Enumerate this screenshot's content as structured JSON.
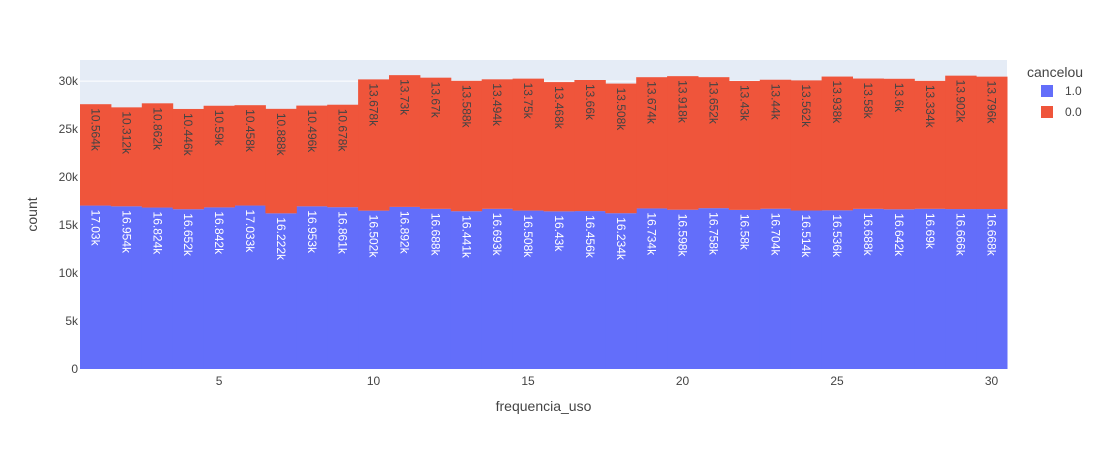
{
  "chart_data": {
    "type": "bar",
    "barmode": "stack",
    "x": [
      1,
      2,
      3,
      4,
      5,
      6,
      7,
      8,
      9,
      10,
      11,
      12,
      13,
      14,
      15,
      16,
      17,
      18,
      19,
      20,
      21,
      22,
      23,
      24,
      25,
      26,
      27,
      28,
      29,
      30
    ],
    "series": [
      {
        "name": "1.0",
        "color": "#636efa",
        "label_color": "#ffffff",
        "values": [
          17030,
          16954,
          16824,
          16652,
          16842,
          17033,
          16222,
          16953,
          16861,
          16502,
          16892,
          16688,
          16441,
          16693,
          16508,
          16430,
          16456,
          16234,
          16734,
          16598,
          16758,
          16580,
          16704,
          16514,
          16536,
          16688,
          16642,
          16690,
          16666,
          16668
        ],
        "labels": [
          "17.03k",
          "16.954k",
          "16.824k",
          "16.652k",
          "16.842k",
          "17.033k",
          "16.222k",
          "16.953k",
          "16.861k",
          "16.502k",
          "16.892k",
          "16.688k",
          "16.441k",
          "16.693k",
          "16.508k",
          "16.43k",
          "16.456k",
          "16.234k",
          "16.734k",
          "16.598k",
          "16.758k",
          "16.58k",
          "16.704k",
          "16.514k",
          "16.536k",
          "16.688k",
          "16.642k",
          "16.69k",
          "16.666k",
          "16.668k"
        ]
      },
      {
        "name": "0.0",
        "color": "#ef553b",
        "label_color": "#444444",
        "values": [
          10564,
          10312,
          10862,
          10446,
          10590,
          10458,
          10888,
          10496,
          10678,
          13678,
          13730,
          13670,
          13588,
          13494,
          13750,
          13468,
          13660,
          13508,
          13674,
          13918,
          13652,
          13430,
          13440,
          13562,
          13938,
          13580,
          13600,
          13334,
          13902,
          13796
        ],
        "labels": [
          "10.564k",
          "10.312k",
          "10.862k",
          "10.446k",
          "10.59k",
          "10.458k",
          "10.888k",
          "10.496k",
          "10.678k",
          "13.678k",
          "13.73k",
          "13.67k",
          "13.588k",
          "13.494k",
          "13.75k",
          "13.468k",
          "13.66k",
          "13.508k",
          "13.674k",
          "13.918k",
          "13.652k",
          "13.43k",
          "13.44k",
          "13.562k",
          "13.938k",
          "13.58k",
          "13.6k",
          "13.334k",
          "13.902k",
          "13.796k"
        ]
      }
    ],
    "xlabel": "frequencia_uso",
    "ylabel": "count",
    "xlim": [
      0.5,
      30.5
    ],
    "ylim": [
      0,
      32200
    ],
    "xticks": [
      5,
      10,
      15,
      20,
      25,
      30
    ],
    "xtick_labels": [
      "5",
      "10",
      "15",
      "20",
      "25",
      "30"
    ],
    "yticks": [
      0,
      5000,
      10000,
      15000,
      20000,
      25000,
      30000
    ],
    "ytick_labels": [
      "0",
      "5k",
      "10k",
      "15k",
      "20k",
      "25k",
      "30k"
    ],
    "legend": {
      "title": "cancelou",
      "position": "right"
    },
    "plot_bgcolor": "#e5ecf6",
    "grid": true
  }
}
